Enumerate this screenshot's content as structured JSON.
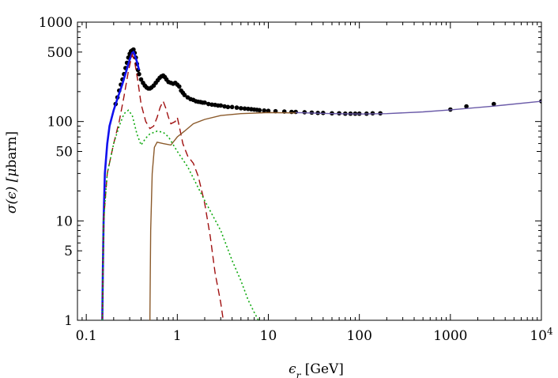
{
  "chart_data": {
    "type": "scatter",
    "title": "",
    "xlabel": {
      "symbol": "ϵ",
      "sub": "r",
      "unit": " [GeV]"
    },
    "ylabel": {
      "pre": "σ(ϵ) [",
      "mu": "μ",
      "post": "barn]"
    },
    "xscale": "log",
    "yscale": "log",
    "xlim": [
      0.08,
      10000
    ],
    "ylim": [
      1,
      1000
    ],
    "grid": false,
    "x_ticks": [
      {
        "value": 0.1,
        "label": "0.1"
      },
      {
        "value": 1,
        "label": "1"
      },
      {
        "value": 10,
        "label": "10"
      },
      {
        "value": 100,
        "label": "100"
      },
      {
        "value": 1000,
        "label": "1000"
      },
      {
        "value": 10000,
        "label": "10",
        "exp": "4"
      }
    ],
    "y_ticks": [
      {
        "value": 1,
        "label": "1"
      },
      {
        "value": 5,
        "label": "5"
      },
      {
        "value": 10,
        "label": "10"
      },
      {
        "value": 50,
        "label": "50"
      },
      {
        "value": 100,
        "label": "100"
      },
      {
        "value": 500,
        "label": "500"
      },
      {
        "value": 1000,
        "label": "1000"
      }
    ],
    "series": [
      {
        "style": "points",
        "color": "#000000",
        "points": [
          [
            0.21,
            150
          ],
          [
            0.22,
            175
          ],
          [
            0.23,
            205
          ],
          [
            0.24,
            235
          ],
          [
            0.25,
            265
          ],
          [
            0.26,
            300
          ],
          [
            0.27,
            345
          ],
          [
            0.28,
            390
          ],
          [
            0.29,
            440
          ],
          [
            0.3,
            480
          ],
          [
            0.31,
            510
          ],
          [
            0.32,
            520
          ],
          [
            0.33,
            530
          ],
          [
            0.34,
            490
          ],
          [
            0.35,
            440
          ],
          [
            0.36,
            380
          ],
          [
            0.37,
            330
          ],
          [
            0.38,
            300
          ],
          [
            0.4,
            265
          ],
          [
            0.42,
            245
          ],
          [
            0.44,
            230
          ],
          [
            0.46,
            220
          ],
          [
            0.48,
            215
          ],
          [
            0.5,
            215
          ],
          [
            0.52,
            220
          ],
          [
            0.55,
            230
          ],
          [
            0.58,
            245
          ],
          [
            0.61,
            260
          ],
          [
            0.64,
            275
          ],
          [
            0.67,
            285
          ],
          [
            0.7,
            290
          ],
          [
            0.73,
            280
          ],
          [
            0.76,
            265
          ],
          [
            0.8,
            250
          ],
          [
            0.85,
            245
          ],
          [
            0.9,
            240
          ],
          [
            0.95,
            245
          ],
          [
            1.0,
            235
          ],
          [
            1.05,
            225
          ],
          [
            1.1,
            205
          ],
          [
            1.15,
            195
          ],
          [
            1.2,
            185
          ],
          [
            1.3,
            175
          ],
          [
            1.4,
            168
          ],
          [
            1.5,
            165
          ],
          [
            1.6,
            160
          ],
          [
            1.7,
            158
          ],
          [
            1.8,
            157
          ],
          [
            1.9,
            155
          ],
          [
            2.0,
            155
          ],
          [
            2.2,
            150
          ],
          [
            2.4,
            148
          ],
          [
            2.6,
            147
          ],
          [
            2.8,
            145
          ],
          [
            3.0,
            145
          ],
          [
            3.3,
            142
          ],
          [
            3.6,
            140
          ],
          [
            4.0,
            140
          ],
          [
            4.5,
            138
          ],
          [
            5.0,
            136
          ],
          [
            5.5,
            135
          ],
          [
            6.0,
            134
          ],
          [
            6.5,
            133
          ],
          [
            7.0,
            132
          ],
          [
            7.5,
            131
          ],
          [
            8.0,
            130
          ],
          [
            9.0,
            129
          ],
          [
            10,
            128
          ],
          [
            12,
            127
          ],
          [
            15,
            126
          ],
          [
            18,
            125
          ],
          [
            20,
            125
          ],
          [
            25,
            124
          ],
          [
            30,
            123
          ],
          [
            35,
            122
          ],
          [
            40,
            122
          ],
          [
            50,
            121
          ],
          [
            60,
            121
          ],
          [
            70,
            120
          ],
          [
            80,
            120
          ],
          [
            90,
            120
          ],
          [
            100,
            120
          ],
          [
            120,
            120
          ],
          [
            140,
            121
          ],
          [
            170,
            121
          ],
          [
            1000,
            132
          ],
          [
            1500,
            142
          ],
          [
            3000,
            150
          ],
          [
            10000,
            160
          ]
        ]
      },
      {
        "style": "solid",
        "color": "#1111ee",
        "points": [
          [
            0.15,
            1
          ],
          [
            0.152,
            3
          ],
          [
            0.155,
            10
          ],
          [
            0.16,
            30
          ],
          [
            0.17,
            60
          ],
          [
            0.18,
            90
          ],
          [
            0.2,
            130
          ],
          [
            0.22,
            170
          ],
          [
            0.25,
            240
          ],
          [
            0.28,
            340
          ],
          [
            0.3,
            420
          ],
          [
            0.32,
            490
          ],
          [
            0.33,
            500
          ],
          [
            0.34,
            470
          ],
          [
            0.36,
            400
          ],
          [
            0.38,
            330
          ]
        ]
      },
      {
        "style": "solid",
        "color": "#6a5aa8",
        "points": [
          [
            20,
            123
          ],
          [
            50,
            120
          ],
          [
            100,
            119
          ],
          [
            200,
            120
          ],
          [
            500,
            125
          ],
          [
            1000,
            131
          ],
          [
            3000,
            143
          ],
          [
            10000,
            160
          ]
        ]
      },
      {
        "style": "dashed",
        "color": "#a01010",
        "points": [
          [
            0.15,
            1
          ],
          [
            0.155,
            10
          ],
          [
            0.17,
            30
          ],
          [
            0.2,
            60
          ],
          [
            0.23,
            100
          ],
          [
            0.26,
            180
          ],
          [
            0.29,
            320
          ],
          [
            0.31,
            420
          ],
          [
            0.32,
            470
          ],
          [
            0.34,
            400
          ],
          [
            0.37,
            250
          ],
          [
            0.4,
            150
          ],
          [
            0.45,
            100
          ],
          [
            0.5,
            85
          ],
          [
            0.55,
            90
          ],
          [
            0.6,
            110
          ],
          [
            0.65,
            140
          ],
          [
            0.7,
            160
          ],
          [
            0.75,
            135
          ],
          [
            0.8,
            110
          ],
          [
            0.85,
            95
          ],
          [
            0.95,
            100
          ],
          [
            1.0,
            110
          ],
          [
            1.05,
            90
          ],
          [
            1.15,
            60
          ],
          [
            1.3,
            45
          ],
          [
            1.5,
            38
          ],
          [
            1.7,
            28
          ],
          [
            2.0,
            15
          ],
          [
            2.3,
            7
          ],
          [
            2.6,
            3
          ],
          [
            3.0,
            1.5
          ],
          [
            3.2,
            1
          ]
        ]
      },
      {
        "style": "dotted",
        "color": "#11aa11",
        "points": [
          [
            0.15,
            1
          ],
          [
            0.155,
            10
          ],
          [
            0.17,
            30
          ],
          [
            0.2,
            60
          ],
          [
            0.23,
            90
          ],
          [
            0.26,
            120
          ],
          [
            0.29,
            130
          ],
          [
            0.32,
            115
          ],
          [
            0.36,
            75
          ],
          [
            0.4,
            58
          ],
          [
            0.45,
            68
          ],
          [
            0.5,
            75
          ],
          [
            0.6,
            80
          ],
          [
            0.7,
            78
          ],
          [
            0.8,
            70
          ],
          [
            1.0,
            50
          ],
          [
            1.3,
            35
          ],
          [
            1.6,
            24
          ],
          [
            2,
            16
          ],
          [
            3,
            8
          ],
          [
            4,
            4
          ],
          [
            5,
            2.5
          ],
          [
            6,
            1.6
          ],
          [
            7,
            1.2
          ],
          [
            7.8,
            1
          ]
        ]
      },
      {
        "style": "solid",
        "color": "#8b5a2b",
        "points": [
          [
            0.5,
            1
          ],
          [
            0.505,
            3
          ],
          [
            0.51,
            8
          ],
          [
            0.53,
            30
          ],
          [
            0.56,
            55
          ],
          [
            0.6,
            62
          ],
          [
            0.7,
            60
          ],
          [
            0.85,
            58
          ],
          [
            0.9,
            62
          ],
          [
            1.0,
            70
          ],
          [
            1.2,
            80
          ],
          [
            1.5,
            95
          ],
          [
            2,
            105
          ],
          [
            3,
            115
          ],
          [
            5,
            120
          ],
          [
            10,
            123
          ],
          [
            20,
            122
          ]
        ]
      }
    ]
  }
}
